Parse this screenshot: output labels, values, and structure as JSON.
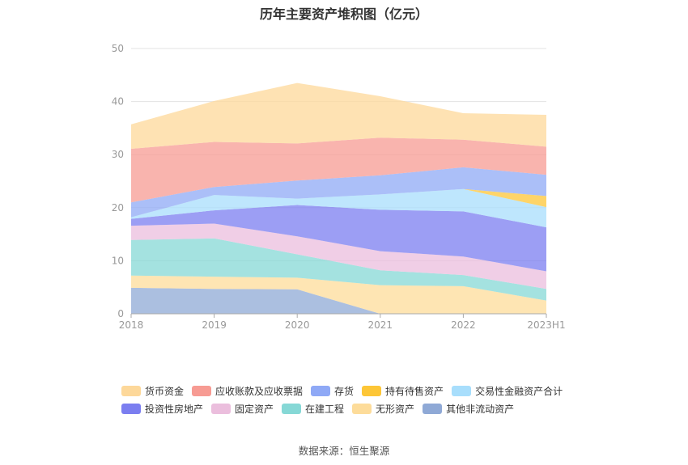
{
  "title": "历年主要资产堆积图（亿元）",
  "source": "数据来源：恒生聚源",
  "chart_data": {
    "type": "area",
    "stacked": true,
    "title": "历年主要资产堆积图（亿元）",
    "x": [
      "2018",
      "2019",
      "2020",
      "2021",
      "2022",
      "2023H1"
    ],
    "ylim": [
      0,
      50
    ],
    "yticks": [
      0,
      10,
      20,
      30,
      40,
      50
    ],
    "grid": true,
    "legend_position": "bottom",
    "series": [
      {
        "name": "其他非流动资产",
        "color": "#8fa9d6",
        "values": [
          4.9,
          4.7,
          4.6,
          0,
          0,
          0
        ]
      },
      {
        "name": "无形资产",
        "color": "#fddc9a",
        "values": [
          2.3,
          2.3,
          2.2,
          5.4,
          5.2,
          2.5
        ]
      },
      {
        "name": "在建工程",
        "color": "#86d8d6",
        "values": [
          6.7,
          7.2,
          4.4,
          2.8,
          2.1,
          2.2
        ]
      },
      {
        "name": "固定资产",
        "color": "#ebbedd",
        "values": [
          2.7,
          2.8,
          3.4,
          3.6,
          3.5,
          3.3
        ]
      },
      {
        "name": "投资性房地产",
        "color": "#7b7ef0",
        "values": [
          1.3,
          2.5,
          5.9,
          7.8,
          8.5,
          8.3
        ]
      },
      {
        "name": "交易性金融资产合计",
        "color": "#a8defc",
        "values": [
          0.3,
          2.9,
          1.2,
          2.9,
          4.2,
          3.8
        ]
      },
      {
        "name": "持有待售资产",
        "color": "#fdc637",
        "values": [
          0,
          0,
          0,
          0,
          0,
          2.1
        ]
      },
      {
        "name": "存货",
        "color": "#8fa9f6",
        "values": [
          2.8,
          1.5,
          3.4,
          3.6,
          4.1,
          4.0
        ]
      },
      {
        "name": "应收账款及应收票据",
        "color": "#f79b93",
        "values": [
          10.1,
          8.5,
          7.0,
          7.1,
          5.2,
          5.3
        ]
      },
      {
        "name": "货币资金",
        "color": "#fdd89a",
        "values": [
          4.6,
          7.7,
          11.4,
          7.8,
          5.0,
          6.0
        ]
      }
    ]
  },
  "legend_rows": [
    [
      "货币资金",
      "应收账款及应收票据",
      "存货",
      "持有待售资产",
      "交易性金融资产合计"
    ],
    [
      "投资性房地产",
      "固定资产",
      "在建工程",
      "无形资产",
      "其他非流动资产"
    ]
  ]
}
